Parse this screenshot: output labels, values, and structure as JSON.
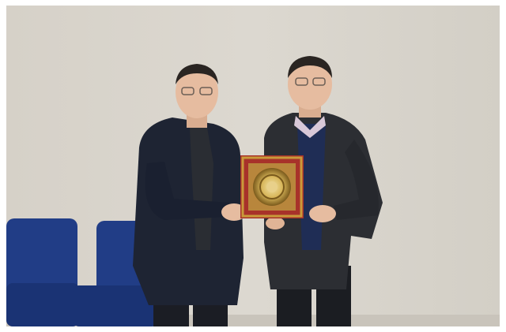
{
  "scene": {
    "subject": "two-men-presenting-framed-plaque",
    "palette": {
      "wall": "#d9d5cd",
      "wall_shadow": "#cfcac1",
      "chair": "#1f3a80",
      "chair_dark": "#142a60",
      "jacket_left": "#1e2433",
      "jacket_right": "#2c2e33",
      "skin": "#e6bca0",
      "hair": "#2a2522",
      "frame_red": "#a8322a",
      "frame_gold": "#c99a3a",
      "plaque_gold": "#d8b65a"
    }
  }
}
